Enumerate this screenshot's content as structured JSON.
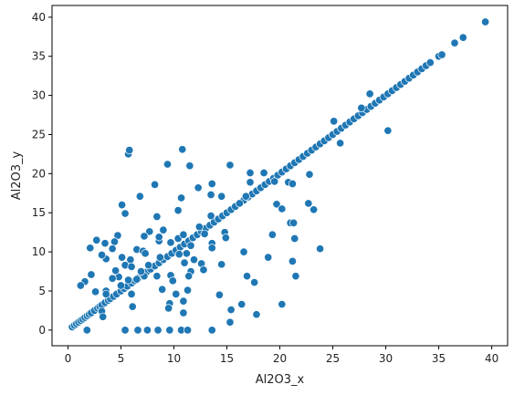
{
  "chart_data": {
    "type": "scatter",
    "title": "",
    "xlabel": "Al2O3_x",
    "ylabel": "Al2O3_y",
    "xlim": [
      -1.5,
      41.5
    ],
    "ylim": [
      -2.0,
      41.5
    ],
    "xticks": [
      0,
      5,
      10,
      15,
      20,
      25,
      30,
      35,
      40
    ],
    "yticks": [
      0,
      5,
      10,
      15,
      20,
      25,
      30,
      35,
      40
    ],
    "xtick_labels": [
      "0",
      "5",
      "10",
      "15",
      "20",
      "25",
      "30",
      "35",
      "40"
    ],
    "ytick_labels": [
      "0",
      "5",
      "10",
      "15",
      "20",
      "25",
      "30",
      "35",
      "40"
    ],
    "grid": false,
    "marker_color": "#1f77b4",
    "series": [
      {
        "points": [
          [
            0.4,
            0.4
          ],
          [
            0.6,
            0.6
          ],
          [
            0.8,
            0.8
          ],
          [
            1.0,
            1.0
          ],
          [
            1.2,
            1.2
          ],
          [
            1.4,
            1.4
          ],
          [
            1.6,
            1.6
          ],
          [
            1.8,
            1.8
          ],
          [
            2.0,
            2.0
          ],
          [
            2.2,
            2.2
          ],
          [
            2.5,
            2.5
          ],
          [
            2.8,
            2.8
          ],
          [
            3.0,
            3.0
          ],
          [
            3.2,
            3.2
          ],
          [
            3.5,
            3.5
          ],
          [
            3.8,
            3.8
          ],
          [
            4.0,
            4.0
          ],
          [
            4.3,
            4.3
          ],
          [
            4.6,
            4.6
          ],
          [
            5.0,
            5.0
          ],
          [
            5.3,
            5.3
          ],
          [
            5.6,
            5.6
          ],
          [
            6.0,
            6.0
          ],
          [
            6.3,
            6.3
          ],
          [
            6.7,
            6.7
          ],
          [
            7.0,
            7.0
          ],
          [
            7.4,
            7.4
          ],
          [
            7.8,
            7.8
          ],
          [
            8.2,
            8.2
          ],
          [
            8.6,
            8.6
          ],
          [
            9.0,
            9.0
          ],
          [
            9.4,
            9.4
          ],
          [
            9.8,
            9.8
          ],
          [
            10.2,
            10.2
          ],
          [
            10.6,
            10.6
          ],
          [
            11.0,
            11.0
          ],
          [
            11.4,
            11.4
          ],
          [
            11.8,
            11.8
          ],
          [
            12.2,
            12.2
          ],
          [
            12.6,
            12.6
          ],
          [
            13.0,
            13.0
          ],
          [
            13.4,
            13.4
          ],
          [
            13.8,
            13.8
          ],
          [
            14.2,
            14.2
          ],
          [
            14.6,
            14.6
          ],
          [
            15.0,
            15.0
          ],
          [
            15.4,
            15.4
          ],
          [
            15.8,
            15.8
          ],
          [
            16.2,
            16.2
          ],
          [
            16.6,
            16.6
          ],
          [
            17.0,
            17.0
          ],
          [
            17.4,
            17.4
          ],
          [
            17.8,
            17.8
          ],
          [
            18.2,
            18.2
          ],
          [
            18.6,
            18.6
          ],
          [
            19.0,
            19.0
          ],
          [
            19.4,
            19.4
          ],
          [
            19.8,
            19.8
          ],
          [
            20.2,
            20.2
          ],
          [
            20.6,
            20.6
          ],
          [
            21.0,
            21.0
          ],
          [
            21.4,
            21.4
          ],
          [
            21.8,
            21.8
          ],
          [
            22.2,
            22.2
          ],
          [
            22.6,
            22.6
          ],
          [
            23.0,
            23.0
          ],
          [
            23.4,
            23.4
          ],
          [
            23.8,
            23.8
          ],
          [
            24.2,
            24.2
          ],
          [
            24.6,
            24.6
          ],
          [
            25.0,
            25.0
          ],
          [
            25.4,
            25.4
          ],
          [
            25.8,
            25.8
          ],
          [
            26.2,
            26.2
          ],
          [
            26.6,
            26.6
          ],
          [
            27.0,
            27.0
          ],
          [
            27.4,
            27.4
          ],
          [
            27.8,
            27.8
          ],
          [
            28.2,
            28.2
          ],
          [
            28.6,
            28.6
          ],
          [
            29.0,
            29.0
          ],
          [
            29.4,
            29.4
          ],
          [
            29.8,
            29.8
          ],
          [
            30.2,
            30.2
          ],
          [
            30.6,
            30.6
          ],
          [
            31.0,
            31.0
          ],
          [
            31.4,
            31.4
          ],
          [
            31.8,
            31.8
          ],
          [
            32.2,
            32.2
          ],
          [
            32.6,
            32.6
          ],
          [
            33.0,
            33.0
          ],
          [
            33.4,
            33.4
          ],
          [
            33.8,
            33.8
          ],
          [
            34.2,
            34.2
          ],
          [
            35.0,
            35.0
          ],
          [
            35.3,
            35.2
          ],
          [
            36.5,
            36.7
          ],
          [
            37.3,
            37.4
          ],
          [
            39.4,
            39.4
          ],
          [
            5.7,
            22.5
          ],
          [
            5.8,
            23.0
          ],
          [
            10.8,
            23.1
          ],
          [
            9.4,
            21.2
          ],
          [
            11.5,
            21.0
          ],
          [
            8.2,
            18.6
          ],
          [
            12.3,
            18.2
          ],
          [
            6.8,
            17.1
          ],
          [
            10.7,
            16.9
          ],
          [
            13.5,
            17.3
          ],
          [
            14.5,
            17.1
          ],
          [
            15.3,
            21.1
          ],
          [
            17.2,
            20.1
          ],
          [
            18.5,
            20.1
          ],
          [
            17.2,
            18.9
          ],
          [
            19.5,
            19.0
          ],
          [
            20.8,
            18.9
          ],
          [
            16.2,
            16.2
          ],
          [
            16.8,
            17.1
          ],
          [
            19.7,
            16.1
          ],
          [
            22.7,
            16.2
          ],
          [
            23.2,
            15.4
          ],
          [
            22.8,
            19.9
          ],
          [
            21.2,
            18.7
          ],
          [
            20.2,
            15.5
          ],
          [
            21.0,
            13.7
          ],
          [
            21.3,
            13.7
          ],
          [
            21.4,
            11.7
          ],
          [
            21.2,
            8.8
          ],
          [
            21.5,
            6.9
          ],
          [
            23.8,
            10.4
          ],
          [
            19.3,
            12.2
          ],
          [
            18.9,
            9.3
          ],
          [
            16.6,
            10.0
          ],
          [
            16.9,
            6.9
          ],
          [
            17.6,
            6.1
          ],
          [
            14.8,
            12.5
          ],
          [
            14.9,
            11.8
          ],
          [
            14.5,
            8.4
          ],
          [
            16.4,
            3.3
          ],
          [
            14.3,
            4.5
          ],
          [
            15.4,
            2.6
          ],
          [
            15.3,
            1.0
          ],
          [
            17.8,
            2.0
          ],
          [
            20.2,
            3.3
          ],
          [
            25.1,
            26.7
          ],
          [
            25.7,
            23.9
          ],
          [
            27.7,
            28.4
          ],
          [
            28.5,
            30.2
          ],
          [
            30.2,
            25.5
          ],
          [
            5.1,
            16.0
          ],
          [
            5.4,
            14.9
          ],
          [
            4.7,
            12.1
          ],
          [
            3.5,
            11.1
          ],
          [
            4.4,
            11.3
          ],
          [
            4.2,
            10.4
          ],
          [
            3.6,
            9.1
          ],
          [
            3.2,
            9.6
          ],
          [
            2.7,
            11.5
          ],
          [
            2.1,
            10.5
          ],
          [
            5.1,
            9.3
          ],
          [
            5.9,
            9.0
          ],
          [
            6.5,
            10.3
          ],
          [
            7.1,
            10.1
          ],
          [
            7.7,
            12.6
          ],
          [
            8.4,
            14.5
          ],
          [
            7.3,
            9.8
          ],
          [
            8.6,
            11.4
          ],
          [
            8.6,
            11.9
          ],
          [
            9.0,
            12.8
          ],
          [
            9.7,
            11.2
          ],
          [
            10.4,
            11.7
          ],
          [
            10.9,
            12.2
          ],
          [
            11.6,
            10.8
          ],
          [
            11.2,
            9.8
          ],
          [
            10.4,
            15.3
          ],
          [
            12.4,
            13.2
          ],
          [
            12.9,
            12.3
          ],
          [
            13.6,
            11.1
          ],
          [
            13.6,
            10.5
          ],
          [
            13.5,
            14.6
          ],
          [
            13.6,
            18.7
          ],
          [
            12.6,
            8.5
          ],
          [
            11.6,
            7.5
          ],
          [
            11.4,
            6.9
          ],
          [
            11.3,
            5.1
          ],
          [
            10.9,
            3.7
          ],
          [
            10.9,
            2.2
          ],
          [
            10.2,
            4.6
          ],
          [
            9.6,
            3.4
          ],
          [
            9.5,
            2.8
          ],
          [
            8.9,
            5.2
          ],
          [
            8.4,
            6.9
          ],
          [
            7.6,
            8.3
          ],
          [
            7.2,
            6.9
          ],
          [
            6.5,
            6.5
          ],
          [
            6.0,
            4.6
          ],
          [
            6.1,
            3.0
          ],
          [
            5.0,
            5.7
          ],
          [
            4.8,
            6.8
          ],
          [
            3.6,
            5.0
          ],
          [
            3.6,
            4.6
          ],
          [
            3.2,
            2.4
          ],
          [
            2.6,
            4.9
          ],
          [
            2.2,
            7.1
          ],
          [
            1.6,
            6.2
          ],
          [
            1.2,
            5.7
          ],
          [
            3.3,
            1.7
          ],
          [
            4.5,
            7.6
          ],
          [
            5.4,
            8.3
          ],
          [
            6.0,
            8.1
          ],
          [
            6.9,
            7.5
          ],
          [
            7.2,
            12.0
          ],
          [
            8.7,
            9.3
          ],
          [
            9.7,
            7.0
          ],
          [
            10.5,
            9.7
          ],
          [
            11.0,
            8.6
          ],
          [
            11.9,
            9.0
          ],
          [
            12.8,
            7.7
          ],
          [
            9.9,
            6.3
          ],
          [
            5.7,
            6.4
          ],
          [
            4.2,
            6.6
          ],
          [
            1.8,
            0.0
          ],
          [
            5.4,
            0.0
          ],
          [
            6.6,
            0.0
          ],
          [
            7.5,
            0.0
          ],
          [
            8.5,
            0.0
          ],
          [
            9.6,
            0.0
          ],
          [
            10.7,
            0.0
          ],
          [
            11.3,
            0.0
          ],
          [
            13.6,
            0.0
          ]
        ]
      }
    ]
  }
}
